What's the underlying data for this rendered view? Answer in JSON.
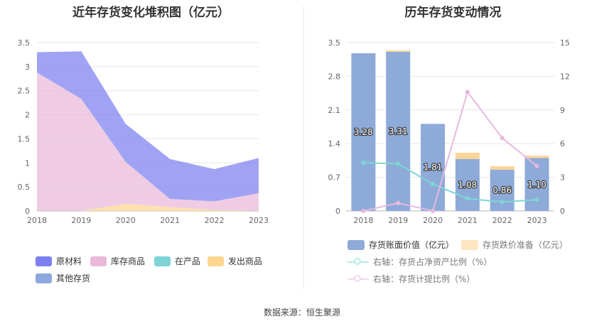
{
  "left": {
    "title": "近年存货变化堆积图（亿元）",
    "legend": [
      {
        "label": "原材料",
        "color": "#7b7ff0"
      },
      {
        "label": "库存商品",
        "color": "#e9b9da"
      },
      {
        "label": "在产品",
        "color": "#7ed3d6"
      },
      {
        "label": "发出商品",
        "color": "#fdd58f"
      },
      {
        "label": "其他存货",
        "color": "#8ea8de"
      }
    ]
  },
  "right": {
    "title": "历年存货变动情况",
    "legend": {
      "bar1": "存货账面价值（亿元）",
      "bar2": "存货跌价准备（亿元）",
      "line1": "右轴：存货占净资产比例（%）",
      "line2": "右轴：存货计提比例（%）"
    }
  },
  "chart_data": [
    {
      "type": "area",
      "stacked": true,
      "title": "近年存货变化堆积图（亿元）",
      "x": [
        "2018",
        "2019",
        "2020",
        "2021",
        "2022",
        "2023"
      ],
      "ylim": [
        0,
        3.5
      ],
      "yticks": [
        "0",
        "0.5",
        "1",
        "1.5",
        "2",
        "2.5",
        "3",
        "3.5"
      ],
      "series": [
        {
          "name": "发出商品",
          "color": "#fdd58f",
          "values": [
            0,
            0,
            0.15,
            0.08,
            0.02,
            0
          ]
        },
        {
          "name": "在产品",
          "color": "#7ed3d6",
          "values": [
            0,
            0,
            0,
            0,
            0,
            0
          ]
        },
        {
          "name": "库存商品",
          "color": "#e9b9da",
          "values": [
            2.88,
            2.33,
            0.87,
            0.17,
            0.18,
            0.37
          ]
        },
        {
          "name": "其他存货",
          "color": "#8ea8de",
          "values": [
            0,
            0,
            0,
            0,
            0,
            0
          ]
        },
        {
          "name": "原材料",
          "color": "#7b7ff0",
          "values": [
            0.42,
            0.99,
            0.79,
            0.83,
            0.67,
            0.73
          ]
        }
      ],
      "grid": true,
      "legend_position": "bottom"
    },
    {
      "type": "bar",
      "title": "历年存货变动情况",
      "categories": [
        "2018",
        "2019",
        "2020",
        "2021",
        "2022",
        "2023"
      ],
      "ylim_left": [
        0,
        3.5
      ],
      "yticks_left": [
        "0",
        "0.7",
        "1.4",
        "2.1",
        "2.8",
        "3.5"
      ],
      "ylim_right": [
        0,
        15
      ],
      "yticks_right": [
        "0",
        "3",
        "6",
        "9",
        "12",
        "15"
      ],
      "series": [
        {
          "name": "存货账面价值（亿元）",
          "color": "#8eaad9",
          "axis": "left",
          "values": [
            3.28,
            3.31,
            1.81,
            1.08,
            0.86,
            1.1
          ],
          "labels": [
            "3.28",
            "3.31",
            "1.81",
            "1.08",
            "0.86",
            "1.10"
          ]
        },
        {
          "name": "存货跌价准备（亿元）",
          "color": "#fdd598",
          "axis": "left",
          "stacked": true,
          "values": [
            0.0,
            0.03,
            0.0,
            0.13,
            0.07,
            0.05
          ]
        },
        {
          "name": "右轴：存货占净资产比例（%）",
          "color": "#7ed6d2",
          "axis": "right",
          "type": "line",
          "values": [
            4.3,
            4.2,
            2.4,
            1.1,
            0.8,
            1.0
          ]
        },
        {
          "name": "右轴：存货计提比例（%）",
          "color": "#e6b9e0",
          "axis": "right",
          "type": "line",
          "values": [
            0,
            0.7,
            0,
            10.6,
            6.5,
            4.0
          ]
        }
      ],
      "grid": true,
      "legend_position": "bottom"
    }
  ],
  "footer": {
    "label": "数据来源：",
    "source": "恒生聚源"
  }
}
